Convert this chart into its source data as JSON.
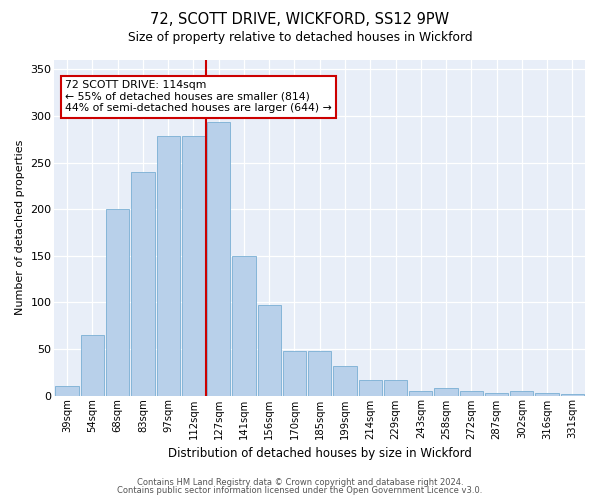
{
  "title1": "72, SCOTT DRIVE, WICKFORD, SS12 9PW",
  "title2": "Size of property relative to detached houses in Wickford",
  "xlabel": "Distribution of detached houses by size in Wickford",
  "ylabel": "Number of detached properties",
  "categories": [
    "39sqm",
    "54sqm",
    "68sqm",
    "83sqm",
    "97sqm",
    "112sqm",
    "127sqm",
    "141sqm",
    "156sqm",
    "170sqm",
    "185sqm",
    "199sqm",
    "214sqm",
    "229sqm",
    "243sqm",
    "258sqm",
    "272sqm",
    "287sqm",
    "302sqm",
    "316sqm",
    "331sqm"
  ],
  "bar_heights": [
    10,
    65,
    200,
    240,
    278,
    278,
    293,
    150,
    97,
    48,
    48,
    32,
    17,
    17,
    5,
    8,
    5,
    3,
    5,
    3,
    2
  ],
  "property_line_x": 5.5,
  "annotation_text": "72 SCOTT DRIVE: 114sqm\n← 55% of detached houses are smaller (814)\n44% of semi-detached houses are larger (644) →",
  "bar_color": "#b8d0ea",
  "bar_edge_color": "#7aafd4",
  "line_color": "#cc0000",
  "annotation_box_color": "#ffffff",
  "annotation_box_edge": "#cc0000",
  "background_color": "#ffffff",
  "plot_bg_color": "#e8eef8",
  "footer1": "Contains HM Land Registry data © Crown copyright and database right 2024.",
  "footer2": "Contains public sector information licensed under the Open Government Licence v3.0.",
  "ylim": [
    0,
    360
  ],
  "yticks": [
    0,
    50,
    100,
    150,
    200,
    250,
    300,
    350
  ]
}
